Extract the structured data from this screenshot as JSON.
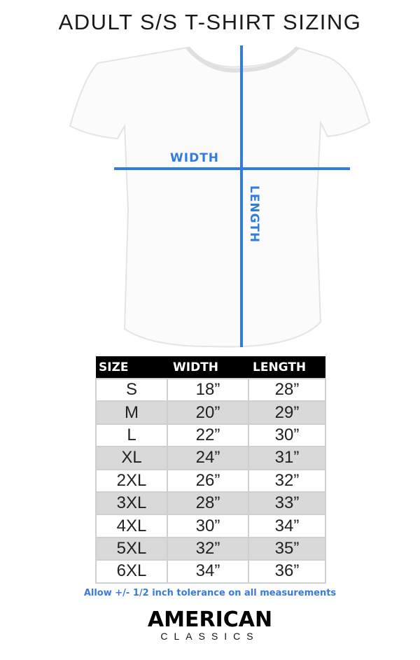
{
  "title": "ADULT S/S T-SHIRT SIZING",
  "diagram": {
    "width_label": "WIDTH",
    "length_label": "LENGTH",
    "accent_color": "#2f7de1"
  },
  "table": {
    "headers": [
      "SIZE",
      "WIDTH",
      "LENGTH"
    ],
    "rows": [
      [
        "S",
        "18”",
        "28”"
      ],
      [
        "M",
        "20”",
        "29”"
      ],
      [
        "L",
        "22”",
        "30”"
      ],
      [
        "XL",
        "24”",
        "31”"
      ],
      [
        "2XL",
        "26”",
        "32”"
      ],
      [
        "3XL",
        "28”",
        "33”"
      ],
      [
        "4XL",
        "30”",
        "34”"
      ],
      [
        "5XL",
        "32”",
        "35”"
      ],
      [
        "6XL",
        "34”",
        "36”"
      ]
    ]
  },
  "note": "Allow +/- 1/2 inch tolerance on all measurements",
  "brand": {
    "line1": "AMERICAN",
    "line2": "CLASSICS"
  }
}
